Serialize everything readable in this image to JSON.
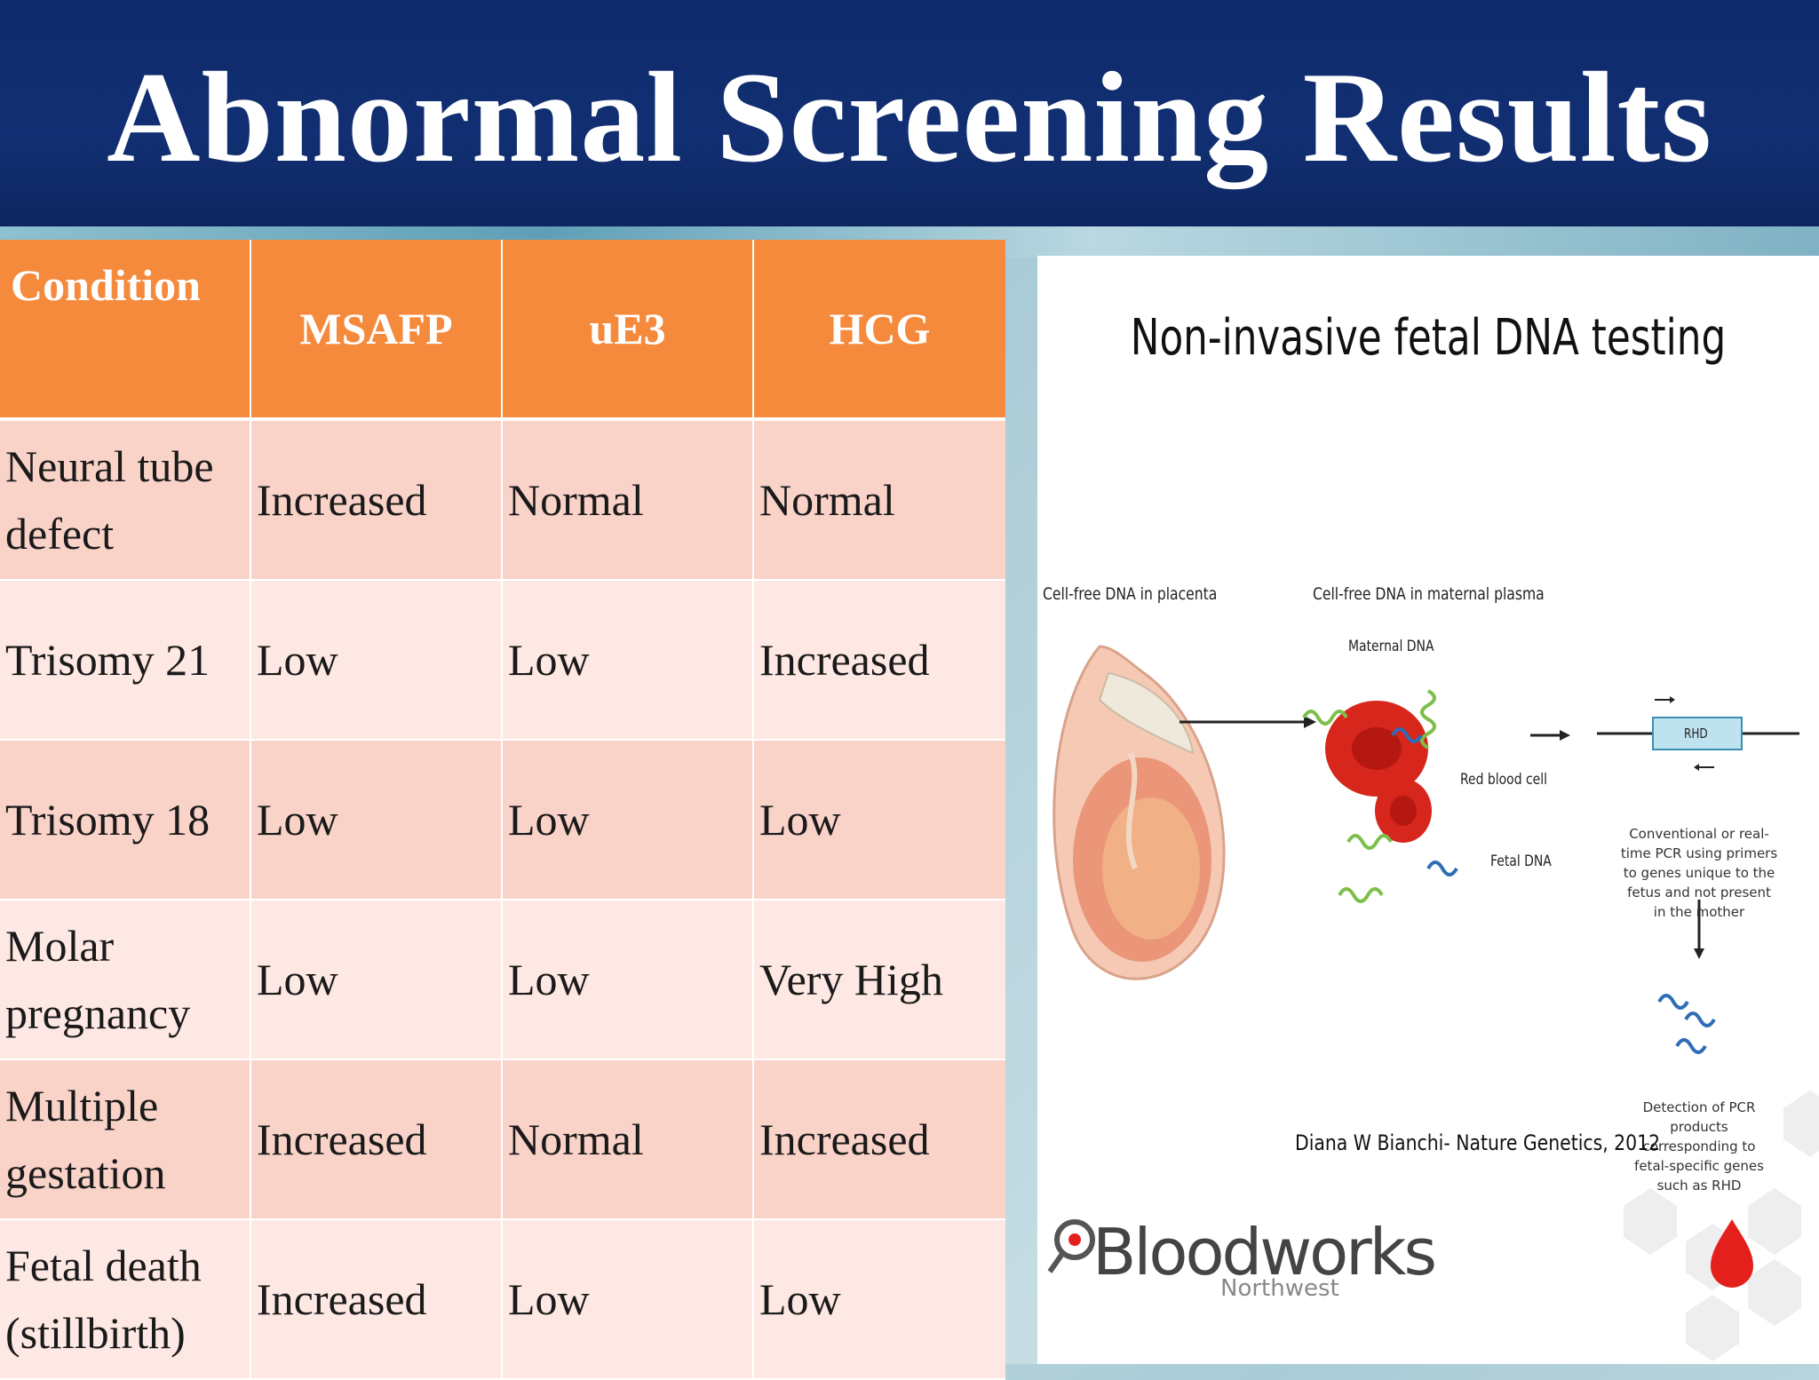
{
  "slide": {
    "title": "Abnormal Screening Results"
  },
  "table": {
    "headers": {
      "condition": "Condition",
      "msafp": "MSAFP",
      "ue3": "uE3",
      "hcg": "HCG"
    },
    "rows": [
      {
        "condition_line1": "Neural tube",
        "condition_line2": "defect",
        "msafp": "Increased",
        "ue3": "Normal",
        "hcg": "Normal"
      },
      {
        "condition_line1": "Trisomy 21",
        "condition_line2": "",
        "msafp": "Low",
        "ue3": "Low",
        "hcg": "Increased"
      },
      {
        "condition_line1": "Trisomy 18",
        "condition_line2": "",
        "msafp": "Low",
        "ue3": "Low",
        "hcg": "Low"
      },
      {
        "condition_line1": "Molar pregnancy",
        "condition_line2": "",
        "msafp": "Low",
        "ue3": "Low",
        "hcg": "Very High"
      },
      {
        "condition_line1": "Multiple",
        "condition_line2": "gestation",
        "msafp": "Increased",
        "ue3": "Normal",
        "hcg": "Increased"
      },
      {
        "condition_line1": "Fetal death",
        "condition_line2": "(stillbirth)",
        "msafp": "Increased",
        "ue3": "Low",
        "hcg": "Low"
      }
    ]
  },
  "figure": {
    "title": "Non-invasive fetal DNA testing",
    "label_placenta": "Cell-free DNA in placenta",
    "label_plasma": "Cell-free DNA in maternal plasma",
    "label_maternal_dna": "Maternal DNA",
    "label_rbc": "Red blood cell",
    "label_fetal_dna": "Fetal DNA",
    "label_gene": "RHD",
    "caption_pcr": "Conventional or real-time PCR using primers to genes unique to the fetus and not present in the mother",
    "caption_detection": "Detection of PCR products corresponding to fetal-specific genes such as RHD",
    "citation": "Diana W Bianchi- Nature Genetics, 2012",
    "logo_name": "Bloodworks",
    "logo_sub": "Northwest",
    "colors": {
      "rbc": "#d7261c",
      "maternal_dna": "#7cbf4a",
      "fetal_dna": "#2f6db5",
      "drop": "#e4201c"
    }
  }
}
